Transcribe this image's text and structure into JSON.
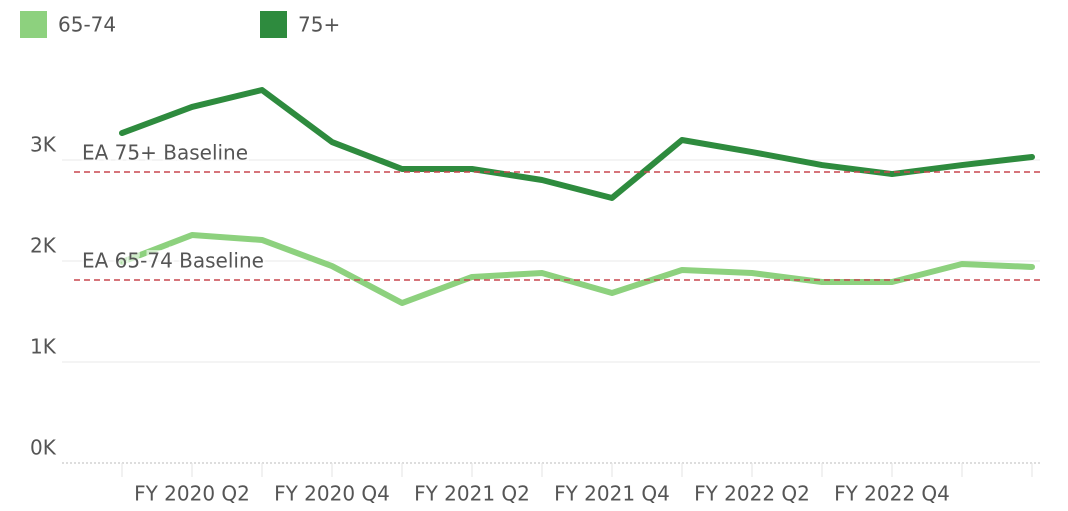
{
  "chart_data": {
    "type": "line",
    "categories": [
      null,
      "FY 2020 Q2",
      null,
      "FY 2020 Q4",
      null,
      "FY 2021 Q2",
      null,
      "FY 2021 Q4",
      null,
      "FY 2022 Q2",
      null,
      "FY 2022 Q4",
      null,
      null
    ],
    "series": [
      {
        "name": "65-74",
        "color": "#8dd17e",
        "values": [
          1990,
          2257,
          2208,
          1950,
          1584,
          1842,
          1881,
          1683,
          1911,
          1881,
          1792,
          1792,
          1970,
          1941
        ]
      },
      {
        "name": "75+",
        "color": "#2e8b3e",
        "values": [
          3267,
          3525,
          3693,
          3178,
          2911,
          2911,
          2802,
          2624,
          3198,
          3079,
          2950,
          2861,
          2950,
          3030
        ]
      }
    ],
    "baselines": [
      {
        "label": "EA 75+ Baseline",
        "value": 2881,
        "color": "#c8474f"
      },
      {
        "label": "EA 65-74 Baseline",
        "value": 1812,
        "color": "#c8474f"
      }
    ],
    "ylim": [
      0,
      4000
    ],
    "yticks": [
      {
        "value": 0,
        "label": "0K"
      },
      {
        "value": 1000,
        "label": "1K"
      },
      {
        "value": 2000,
        "label": "2K"
      },
      {
        "value": 3000,
        "label": "3K"
      }
    ],
    "grid": true,
    "legend": "top"
  }
}
